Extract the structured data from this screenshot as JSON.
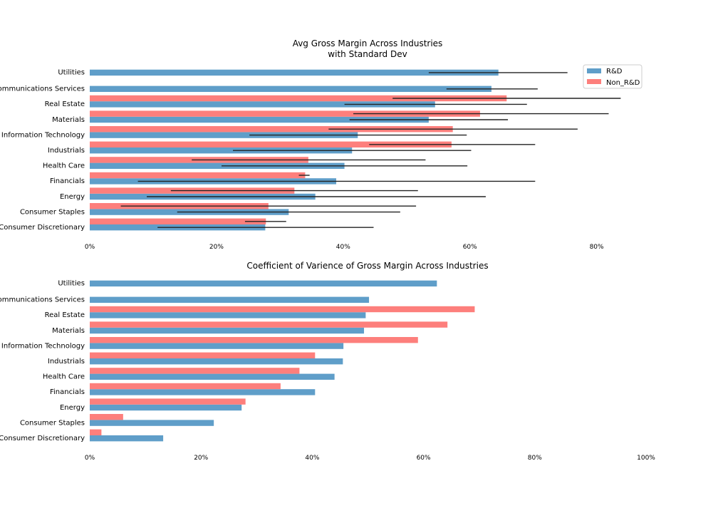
{
  "chart_data": [
    {
      "type": "bar",
      "orientation": "horizontal",
      "title": "Avg Gross Margin Across Industries\nwith Standard Dev",
      "categories": [
        "Consumer Discretionary",
        "Consumer Staples",
        "Energy",
        "Financials",
        "Health Care",
        "Industrials",
        "Information Technology",
        "Materials",
        "Real Estate",
        "Communications Services",
        "Utilities"
      ],
      "xlim": [
        0,
        90
      ],
      "x_ticks": [
        "0%",
        "20%",
        "40%",
        "60%",
        "80%"
      ],
      "legend": "top-right",
      "series": [
        {
          "name": "R&D",
          "color": "#5f9ec9",
          "values": [
            27.7,
            31.4,
            35.6,
            38.9,
            40.2,
            41.4,
            42.3,
            53.5,
            54.5,
            63.4,
            64.5
          ],
          "err_low": [
            10.7,
            13.8,
            9.0,
            7.6,
            20.8,
            22.6,
            25.2,
            41.0,
            40.2,
            56.3,
            53.5
          ],
          "err_high": [
            44.8,
            49.0,
            62.5,
            70.3,
            59.6,
            60.2,
            59.5,
            66.0,
            69.0,
            70.7,
            75.4
          ]
        },
        {
          "name": "Non_R&D",
          "color": "#fd7f7c",
          "values": [
            27.8,
            28.2,
            32.3,
            34.0,
            34.5,
            57.1,
            57.3,
            61.6,
            65.8,
            null,
            null
          ],
          "err_low": [
            24.5,
            4.9,
            12.8,
            33.0,
            16.1,
            44.1,
            37.7,
            41.6,
            47.8,
            null,
            null
          ],
          "err_high": [
            31.0,
            51.5,
            51.8,
            34.7,
            53.0,
            70.3,
            77.0,
            81.9,
            83.8,
            null,
            null
          ]
        }
      ]
    },
    {
      "type": "bar",
      "orientation": "horizontal",
      "title": "Coefficient of Varience of Gross Margin Across Industries",
      "categories": [
        "Consumer Discretionary",
        "Consumer Staples",
        "Energy",
        "Financials",
        "Health Care",
        "Industrials",
        "Information Technology",
        "Materials",
        "Real Estate",
        "Communications Services",
        "Utilities"
      ],
      "xlim": [
        0,
        100
      ],
      "x_ticks": [
        "0%",
        "20%",
        "40%",
        "60%",
        "80%",
        "100%"
      ],
      "series": [
        {
          "name": "R&D",
          "color": "#5f9ec9",
          "values": [
            13.2,
            22.3,
            27.3,
            40.5,
            44.0,
            45.5,
            45.6,
            49.3,
            49.6,
            50.2,
            62.4
          ]
        },
        {
          "name": "Non_R&D",
          "color": "#fd7f7c",
          "values": [
            2.1,
            6.0,
            28.0,
            34.3,
            37.7,
            40.5,
            59.0,
            64.3,
            69.2,
            null,
            null
          ]
        }
      ]
    }
  ]
}
